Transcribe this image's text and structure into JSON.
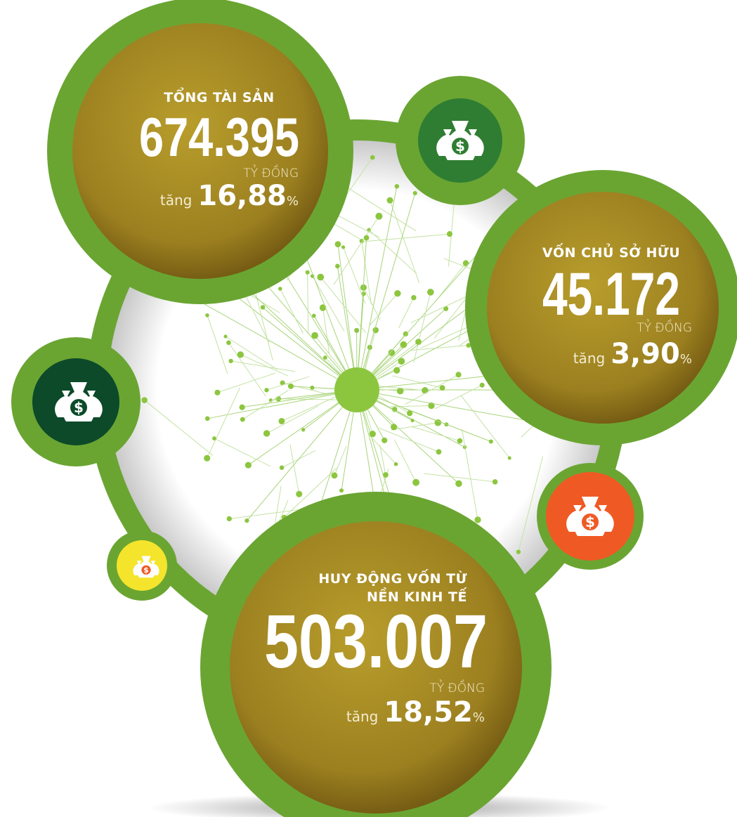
{
  "stats": [
    {
      "title_lines": [
        "TỔNG TÀI SẢN"
      ],
      "value": "674.395",
      "unit": "TỶ ĐỒNG",
      "change_label": "tăng",
      "change": "16,88",
      "change_unit": "%"
    },
    {
      "title_lines": [
        "VỐN CHỦ SỞ HỮU"
      ],
      "value": "45.172",
      "unit": "TỶ ĐỒNG",
      "change_label": "tăng",
      "change": "3,90",
      "change_unit": "%"
    },
    {
      "title_lines": [
        "HUY ĐỘNG VỐN TỪ",
        "NỀN KINH TẾ"
      ],
      "value": "503.007",
      "unit": "TỶ ĐỒNG",
      "change_label": "tăng",
      "change": "18,52",
      "change_unit": "%"
    }
  ]
}
